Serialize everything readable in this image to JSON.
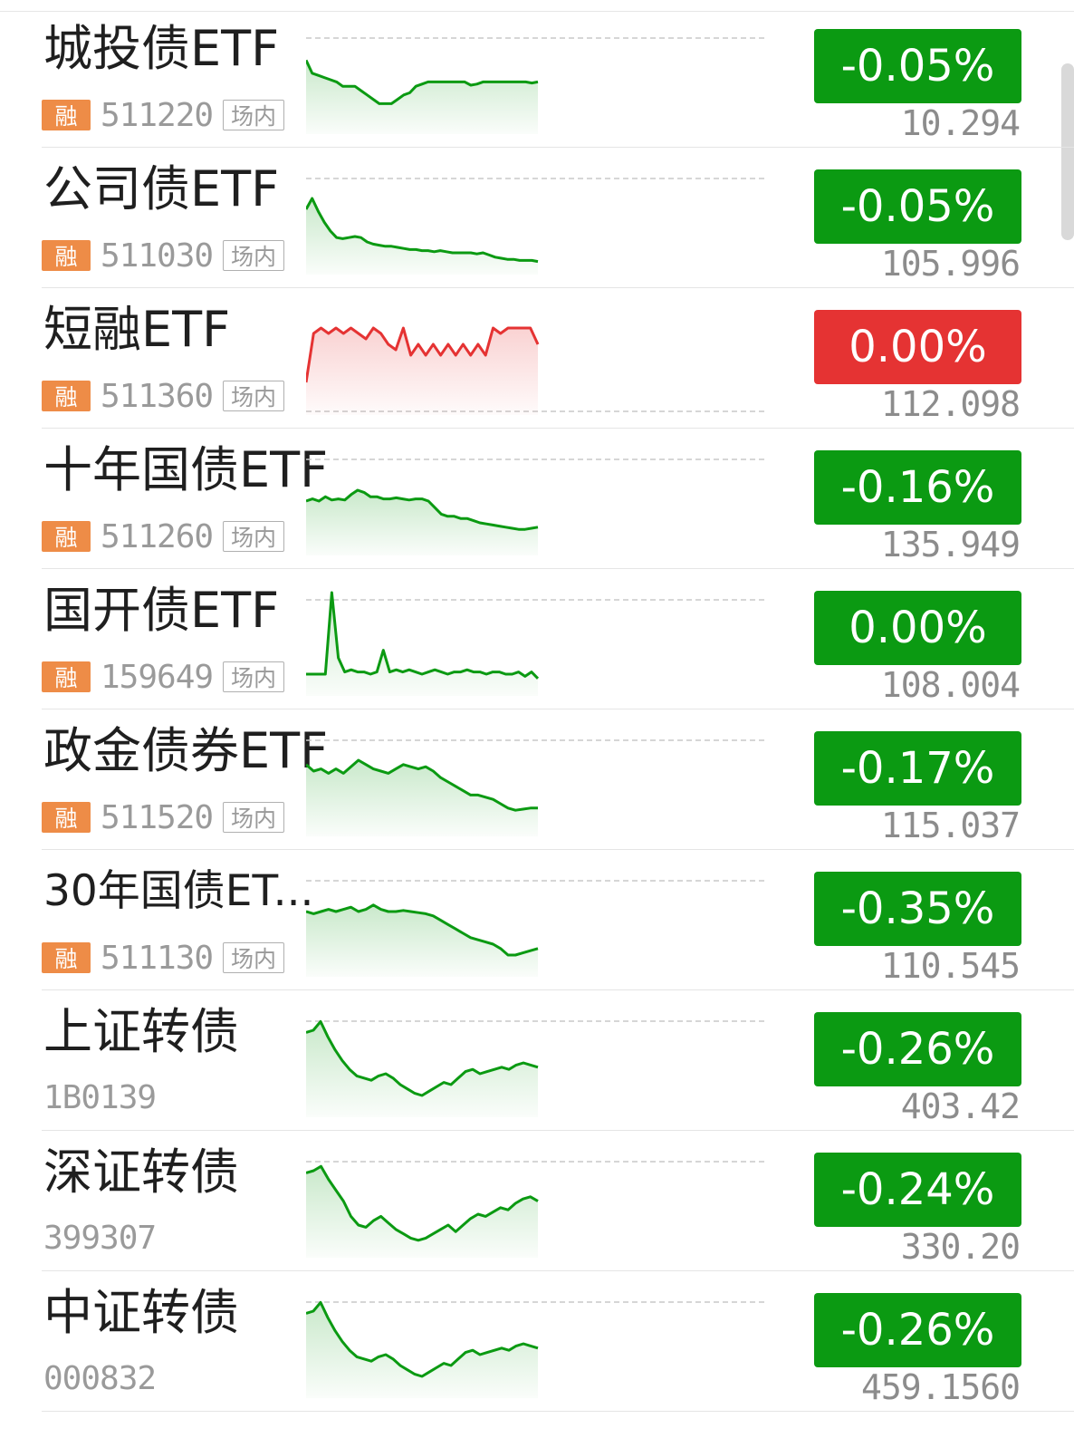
{
  "colors": {
    "down": "#0b9a12",
    "up": "#e53333",
    "rong_tag": "#ee8c47"
  },
  "tags": {
    "rong": "融",
    "changnei": "场内"
  },
  "items": [
    {
      "name": "城投债ETF",
      "code": "511220",
      "rong": true,
      "change": "-0.05%",
      "price": "10.294",
      "trend": "down",
      "spark": [
        68,
        56,
        54,
        52,
        50,
        48,
        44,
        44,
        44,
        40,
        36,
        32,
        28,
        28,
        28,
        32,
        36,
        38,
        44,
        46,
        48,
        48,
        48,
        48,
        48,
        48,
        48,
        45,
        46,
        48,
        48,
        48,
        48,
        48,
        48,
        48,
        48,
        47,
        48
      ]
    },
    {
      "name": "公司债ETF",
      "code": "511030",
      "rong": true,
      "change": "-0.05%",
      "price": "105.996",
      "trend": "down",
      "spark": [
        60,
        70,
        58,
        48,
        40,
        34,
        33,
        34,
        35,
        34,
        30,
        28,
        27,
        26,
        26,
        25,
        24,
        23,
        23,
        22,
        22,
        21,
        22,
        21,
        20,
        20,
        20,
        20,
        19,
        20,
        18,
        16,
        15,
        14,
        14,
        13,
        13,
        13,
        12
      ]
    },
    {
      "name": "短融ETF",
      "code": "511360",
      "rong": true,
      "change": "0.00%",
      "price": "112.098",
      "trend": "up",
      "spark": [
        30,
        75,
        80,
        75,
        80,
        75,
        80,
        75,
        70,
        80,
        75,
        65,
        60,
        80,
        55,
        65,
        55,
        65,
        55,
        65,
        55,
        65,
        55,
        65,
        55,
        80,
        75,
        80,
        80,
        80,
        80,
        65
      ]
    },
    {
      "name": "十年国债ETF",
      "code": "511260",
      "rong": true,
      "change": "-0.16%",
      "price": "135.949",
      "trend": "down",
      "spark": [
        50,
        52,
        50,
        54,
        51,
        52,
        51,
        56,
        60,
        58,
        54,
        54,
        52,
        52,
        53,
        52,
        51,
        52,
        52,
        50,
        44,
        38,
        36,
        36,
        34,
        34,
        32,
        30,
        29,
        28,
        27,
        26,
        25,
        24,
        24,
        25,
        26
      ]
    },
    {
      "name": "国开债ETF",
      "code": "159649",
      "rong": true,
      "change": "0.00%",
      "price": "108.004",
      "trend": "down",
      "spark": [
        20,
        20,
        20,
        20,
        95,
        35,
        22,
        24,
        22,
        22,
        20,
        22,
        42,
        22,
        24,
        22,
        24,
        22,
        20,
        22,
        24,
        22,
        20,
        22,
        22,
        24,
        22,
        22,
        20,
        22,
        22,
        20,
        20,
        22,
        18,
        22,
        16
      ]
    },
    {
      "name": "政金债券ETF",
      "code": "511520",
      "rong": true,
      "change": "-0.17%",
      "price": "115.037",
      "trend": "down",
      "spark": [
        66,
        60,
        62,
        58,
        62,
        58,
        64,
        70,
        66,
        62,
        60,
        58,
        62,
        66,
        64,
        62,
        64,
        60,
        54,
        50,
        46,
        42,
        38,
        38,
        36,
        34,
        30,
        26,
        24,
        25,
        26,
        26
      ]
    },
    {
      "name": "30年国债ET...",
      "code": "511130",
      "rong": true,
      "change": "-0.35%",
      "price": "110.545",
      "trend": "down",
      "spark": [
        60,
        58,
        60,
        62,
        60,
        62,
        64,
        60,
        62,
        66,
        62,
        60,
        60,
        61,
        60,
        59,
        58,
        56,
        52,
        48,
        44,
        40,
        36,
        34,
        32,
        30,
        26,
        20,
        20,
        22,
        24,
        26
      ]
    },
    {
      "name": "上证转债",
      "code": "1B0139",
      "rong": false,
      "change": "-0.26%",
      "price": "403.42",
      "trend": "down",
      "spark": [
        78,
        80,
        88,
        74,
        62,
        52,
        44,
        38,
        36,
        34,
        38,
        40,
        36,
        30,
        26,
        22,
        20,
        24,
        28,
        32,
        30,
        36,
        42,
        44,
        40,
        42,
        44,
        46,
        44,
        48,
        50,
        48,
        46
      ]
    },
    {
      "name": "深证转债",
      "code": "399307",
      "rong": false,
      "change": "-0.24%",
      "price": "330.20",
      "trend": "down",
      "spark": [
        78,
        80,
        84,
        72,
        62,
        52,
        38,
        30,
        28,
        34,
        38,
        32,
        26,
        22,
        18,
        16,
        18,
        22,
        26,
        30,
        24,
        30,
        36,
        40,
        38,
        42,
        46,
        44,
        50,
        54,
        56,
        52
      ]
    },
    {
      "name": "中证转债",
      "code": "000832",
      "rong": false,
      "change": "-0.26%",
      "price": "459.1560",
      "trend": "down",
      "spark": [
        78,
        80,
        88,
        74,
        62,
        52,
        44,
        38,
        36,
        34,
        38,
        40,
        36,
        30,
        26,
        22,
        20,
        24,
        28,
        32,
        30,
        36,
        42,
        44,
        40,
        42,
        44,
        46,
        44,
        48,
        50,
        48,
        46
      ]
    }
  ]
}
